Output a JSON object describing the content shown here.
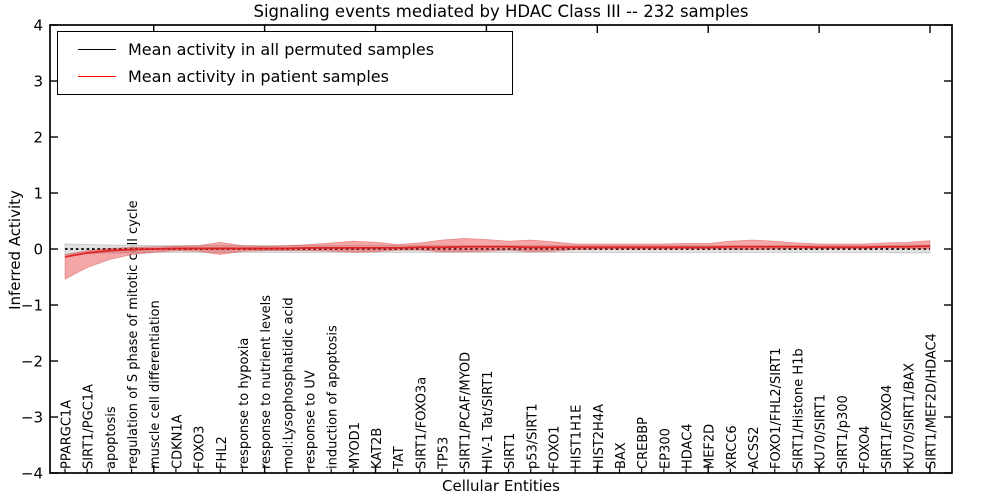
{
  "figure": {
    "title": "Signaling events mediated by HDAC Class III -- 232 samples",
    "xlabel": "Cellular Entities",
    "ylabel": "Inferred Activity"
  },
  "legend": {
    "items": [
      {
        "label": "Mean activity in all permuted samples",
        "color": "#000000",
        "style": "dotted"
      },
      {
        "label": "Mean activity in patient samples",
        "color": "#ff0000",
        "style": "solid"
      }
    ]
  },
  "chart_data": {
    "type": "line",
    "title": "Signaling events mediated by HDAC Class III -- 232 samples",
    "xlabel": "Cellular Entities",
    "ylabel": "Inferred Activity",
    "ylim": [
      -4,
      4
    ],
    "yticks": [
      4,
      3,
      2,
      1,
      0,
      -1,
      -2,
      -3,
      -4
    ],
    "grid": false,
    "legend_position": "upper left",
    "colors": {
      "permuted_line": "#000000",
      "permuted_band": "#d9d9d9",
      "patient_line": "#e01f1f",
      "patient_band": "#e62e2e"
    },
    "categories": [
      "PPARGC1A",
      "SIRT1/PGC1A",
      "apoptosis",
      "regulation of S phase of mitotic cell cycle",
      "muscle cell differentiation",
      "CDKN1A",
      "FOXO3",
      "FHL2",
      "response to hypoxia",
      "response to nutrient levels",
      "mol:Lysophosphatidic acid",
      "response to UV",
      "induction of apoptosis",
      "MYOD1",
      "KAT2B",
      "TAT",
      "SIRT1/FOXO3a",
      "TP53",
      "SIRT1/PCAF/MYOD",
      "HIV-1 Tat/SIRT1",
      "SIRT1",
      "p53/SIRT1",
      "FOXO1",
      "HIST1H1E",
      "HIST2H4A",
      "BAX",
      "CREBBP",
      "EP300",
      "HDAC4",
      "MEF2D",
      "XRCC6",
      "ACSS2",
      "FOXO1/FHL2/SIRT1",
      "SIRT1/Histone H1b",
      "KU70/SIRT1",
      "SIRT1/p300",
      "FOXO4",
      "SIRT1/FOXO4",
      "KU70/SIRT1/BAX",
      "SIRT1/MEF2D/HDAC4"
    ],
    "series": [
      {
        "name": "Mean activity in all permuted samples",
        "style": "dotted",
        "values": [
          0,
          0,
          0,
          0,
          0,
          0,
          0,
          0,
          0,
          0,
          0,
          0,
          0,
          0,
          0,
          0,
          0,
          0,
          0,
          0,
          0,
          0,
          0,
          0,
          0,
          0,
          0,
          0,
          0,
          0,
          0,
          0,
          0,
          0,
          0,
          0,
          0,
          0,
          0,
          0
        ],
        "band_halfwidth": [
          0.09,
          0.08,
          0.07,
          0.07,
          0.06,
          0.06,
          0.06,
          0.06,
          0.06,
          0.06,
          0.06,
          0.06,
          0.06,
          0.06,
          0.06,
          0.06,
          0.06,
          0.06,
          0.06,
          0.06,
          0.06,
          0.06,
          0.06,
          0.06,
          0.06,
          0.06,
          0.06,
          0.06,
          0.06,
          0.06,
          0.06,
          0.06,
          0.06,
          0.06,
          0.06,
          0.06,
          0.06,
          0.06,
          0.07,
          0.07
        ]
      },
      {
        "name": "Mean activity in patient samples",
        "style": "solid",
        "values": [
          -0.14,
          -0.07,
          -0.03,
          -0.01,
          0,
          0.01,
          0.01,
          0.01,
          0.01,
          0.01,
          0.01,
          0.02,
          0.02,
          0.02,
          0.02,
          0.02,
          0.03,
          0.03,
          0.04,
          0.04,
          0.04,
          0.03,
          0.03,
          0.03,
          0.03,
          0.03,
          0.03,
          0.03,
          0.03,
          0.03,
          0.04,
          0.04,
          0.04,
          0.04,
          0.03,
          0.03,
          0.03,
          0.04,
          0.04,
          0.05
        ],
        "band_upper": [
          0.04,
          0.04,
          0.04,
          0.04,
          0.04,
          0.04,
          0.05,
          0.11,
          0.05,
          0.04,
          0.05,
          0.06,
          0.09,
          0.12,
          0.1,
          0.06,
          0.08,
          0.13,
          0.15,
          0.13,
          0.1,
          0.13,
          0.1,
          0.06,
          0.06,
          0.06,
          0.06,
          0.06,
          0.07,
          0.07,
          0.1,
          0.12,
          0.1,
          0.07,
          0.06,
          0.06,
          0.06,
          0.07,
          0.08,
          0.1
        ],
        "band_lower": [
          -0.4,
          -0.26,
          -0.16,
          -0.09,
          -0.06,
          -0.04,
          -0.05,
          -0.11,
          -0.05,
          -0.04,
          -0.04,
          -0.05,
          -0.06,
          -0.08,
          -0.07,
          -0.04,
          -0.05,
          -0.08,
          -0.09,
          -0.08,
          -0.06,
          -0.08,
          -0.07,
          -0.04,
          -0.03,
          -0.03,
          -0.03,
          -0.03,
          -0.03,
          -0.03,
          -0.04,
          -0.05,
          -0.04,
          -0.03,
          -0.02,
          -0.02,
          -0.02,
          -0.02,
          -0.03,
          -0.04
        ]
      }
    ]
  }
}
